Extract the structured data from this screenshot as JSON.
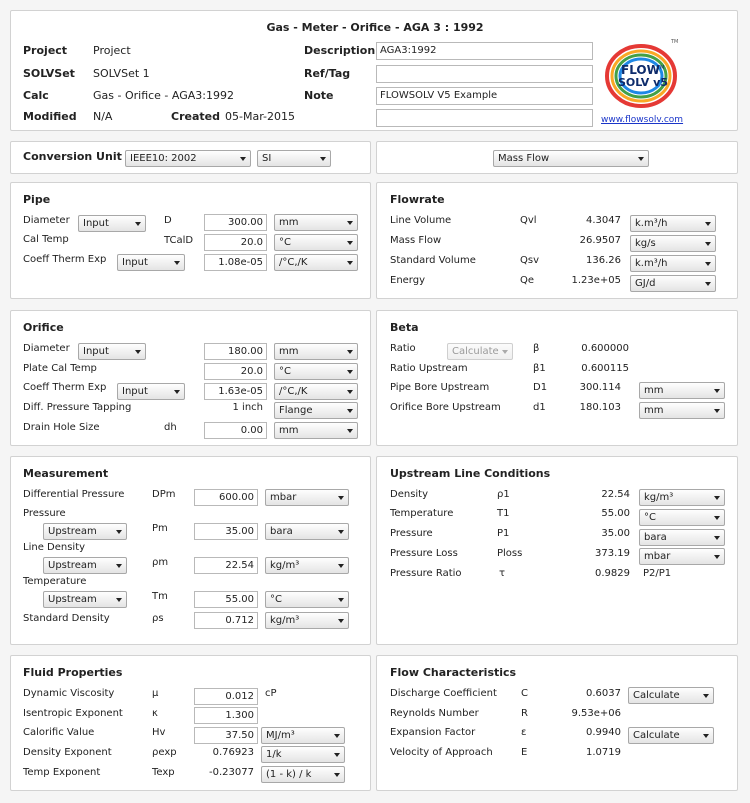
{
  "title": "Gas - Meter - Orifice - AGA 3 : 1992",
  "header": {
    "project_label": "Project",
    "project_value": "Project",
    "solvset_label": "SOLVSet",
    "solvset_value": "SOLVSet 1",
    "calc_label": "Calc",
    "calc_value": "Gas - Orifice - AGA3:1992",
    "modified_label": "Modified",
    "modified_value": "N/A",
    "created_label": "Created",
    "created_value": "05-Mar-2015",
    "description_label": "Description",
    "description_value": "AGA3:1992",
    "reftag_label": "Ref/Tag",
    "reftag_value": "",
    "note_label": "Note",
    "note_value": "FLOWSOLV V5 Example",
    "extra_value": "",
    "logo_text_top": "FLOW",
    "logo_text_tm": "TM",
    "logo_text_bottom": "SOLV v5",
    "logo_tm_mark": "TM",
    "website": "www.flowsolv.com"
  },
  "conversion": {
    "label": "Conversion Unit",
    "standard": "IEEE10: 2002",
    "system": "SI",
    "flow_mode": "Mass Flow"
  },
  "pipe": {
    "title": "Pipe",
    "diameter_label": "Diameter",
    "diameter_mode": "Input",
    "diameter_symbol": "D",
    "diameter_value": "300.00",
    "diameter_unit": "mm",
    "caltemp_label": "Cal Temp",
    "caltemp_symbol": "TCalD",
    "caltemp_value": "20.0",
    "caltemp_unit": "°C",
    "coeff_label": "Coeff Therm Exp",
    "coeff_mode": "Input",
    "coeff_value": "1.08e-05",
    "coeff_unit": "/°C,/K"
  },
  "flowrate": {
    "title": "Flowrate",
    "rows": [
      {
        "label": "Line Volume",
        "symbol": "Qvl",
        "value": "4.3047",
        "unit": "k.m³/h"
      },
      {
        "label": "Mass Flow",
        "symbol": "",
        "value": "26.9507",
        "unit": "kg/s"
      },
      {
        "label": "Standard Volume",
        "symbol": "Qsv",
        "value": "136.26",
        "unit": "k.m³/h"
      },
      {
        "label": "Energy",
        "symbol": "Qe",
        "value": "1.23e+05",
        "unit": "GJ/d"
      }
    ]
  },
  "orifice": {
    "title": "Orifice",
    "diameter_label": "Diameter",
    "diameter_mode": "Input",
    "diameter_value": "180.00",
    "diameter_unit": "mm",
    "platecal_label": "Plate Cal Temp",
    "platecal_value": "20.0",
    "platecal_unit": "°C",
    "coeff_label": "Coeff Therm Exp",
    "coeff_mode": "Input",
    "coeff_value": "1.63e-05",
    "coeff_unit": "/°C,/K",
    "tapping_label": "Diff. Pressure Tapping",
    "tapping_value": "1 inch",
    "tapping_type": "Flange",
    "drain_label": "Drain Hole Size",
    "drain_symbol": "dh",
    "drain_value": "0.00",
    "drain_unit": "mm"
  },
  "beta": {
    "title": "Beta",
    "ratio_label": "Ratio",
    "ratio_mode": "Calculate",
    "ratio_symbol": "β",
    "ratio_value": "0.600000",
    "ratio_up_label": "Ratio Upstream",
    "ratio_up_symbol": "β1",
    "ratio_up_value": "0.600115",
    "pipebore_label": "Pipe Bore Upstream",
    "pipebore_symbol": "D1",
    "pipebore_value": "300.114",
    "pipebore_unit": "mm",
    "orificebore_label": "Orifice Bore Upstream",
    "orificebore_symbol": "d1",
    "orificebore_value": "180.103",
    "orificebore_unit": "mm"
  },
  "measurement": {
    "title": "Measurement",
    "dp_label": "Differential Pressure",
    "dp_symbol": "DPm",
    "dp_value": "600.00",
    "dp_unit": "mbar",
    "p_label": "Pressure",
    "p_location": "Upstream",
    "p_symbol": "Pm",
    "p_value": "35.00",
    "p_unit": "bara",
    "ld_label": "Line Density",
    "ld_location": "Upstream",
    "ld_symbol": "ρm",
    "ld_value": "22.54",
    "ld_unit": "kg/m³",
    "t_label": "Temperature",
    "t_location": "Upstream",
    "t_symbol": "Tm",
    "t_value": "55.00",
    "t_unit": "°C",
    "sd_label": "Standard Density",
    "sd_symbol": "ρs",
    "sd_value": "0.712",
    "sd_unit": "kg/m³"
  },
  "upstream": {
    "title": "Upstream Line Conditions",
    "rows": [
      {
        "label": "Density",
        "symbol": "ρ1",
        "value": "22.54",
        "unit": "kg/m³"
      },
      {
        "label": "Temperature",
        "symbol": "T1",
        "value": "55.00",
        "unit": "°C"
      },
      {
        "label": "Pressure",
        "symbol": "P1",
        "value": "35.00",
        "unit": "bara"
      },
      {
        "label": "Pressure Loss",
        "symbol": "Ploss",
        "value": "373.19",
        "unit": "mbar"
      }
    ],
    "pratio_label": "Pressure Ratio",
    "pratio_symbol": "τ",
    "pratio_value": "0.9829",
    "pratio_unit": "P2/P1"
  },
  "fluid": {
    "title": "Fluid Properties",
    "visc_label": "Dynamic Viscosity",
    "visc_symbol": "μ",
    "visc_value": "0.012",
    "visc_unit": "cP",
    "isen_label": "Isentropic Exponent",
    "isen_symbol": "κ",
    "isen_value": "1.300",
    "cal_label": "Calorific Value",
    "cal_symbol": "Hv",
    "cal_value": "37.50",
    "cal_unit": "MJ/m³",
    "dexp_label": "Density Exponent",
    "dexp_symbol": "ρexp",
    "dexp_value": "0.76923",
    "dexp_unit": "1/k",
    "texp_label": "Temp Exponent",
    "texp_symbol": "Texp",
    "texp_value": "-0.23077",
    "texp_unit": "(1 - k) / k"
  },
  "flowchar": {
    "title": "Flow Characteristics",
    "dc_label": "Discharge Coefficient",
    "dc_symbol": "C",
    "dc_value": "0.6037",
    "dc_mode": "Calculate",
    "re_label": "Reynolds Number",
    "re_symbol": "R",
    "re_value": "9.53e+06",
    "ef_label": "Expansion Factor",
    "ef_symbol": "ε",
    "ef_value": "0.9940",
    "ef_mode": "Calculate",
    "va_label": "Velocity of Approach",
    "va_symbol": "E",
    "va_value": "1.0719"
  },
  "colors": {
    "link": "#1a35c9",
    "panel_border": "#d2d2d2",
    "logo_ring": [
      "#e53935",
      "#f9a825",
      "#43a047",
      "#1e88e5"
    ]
  }
}
